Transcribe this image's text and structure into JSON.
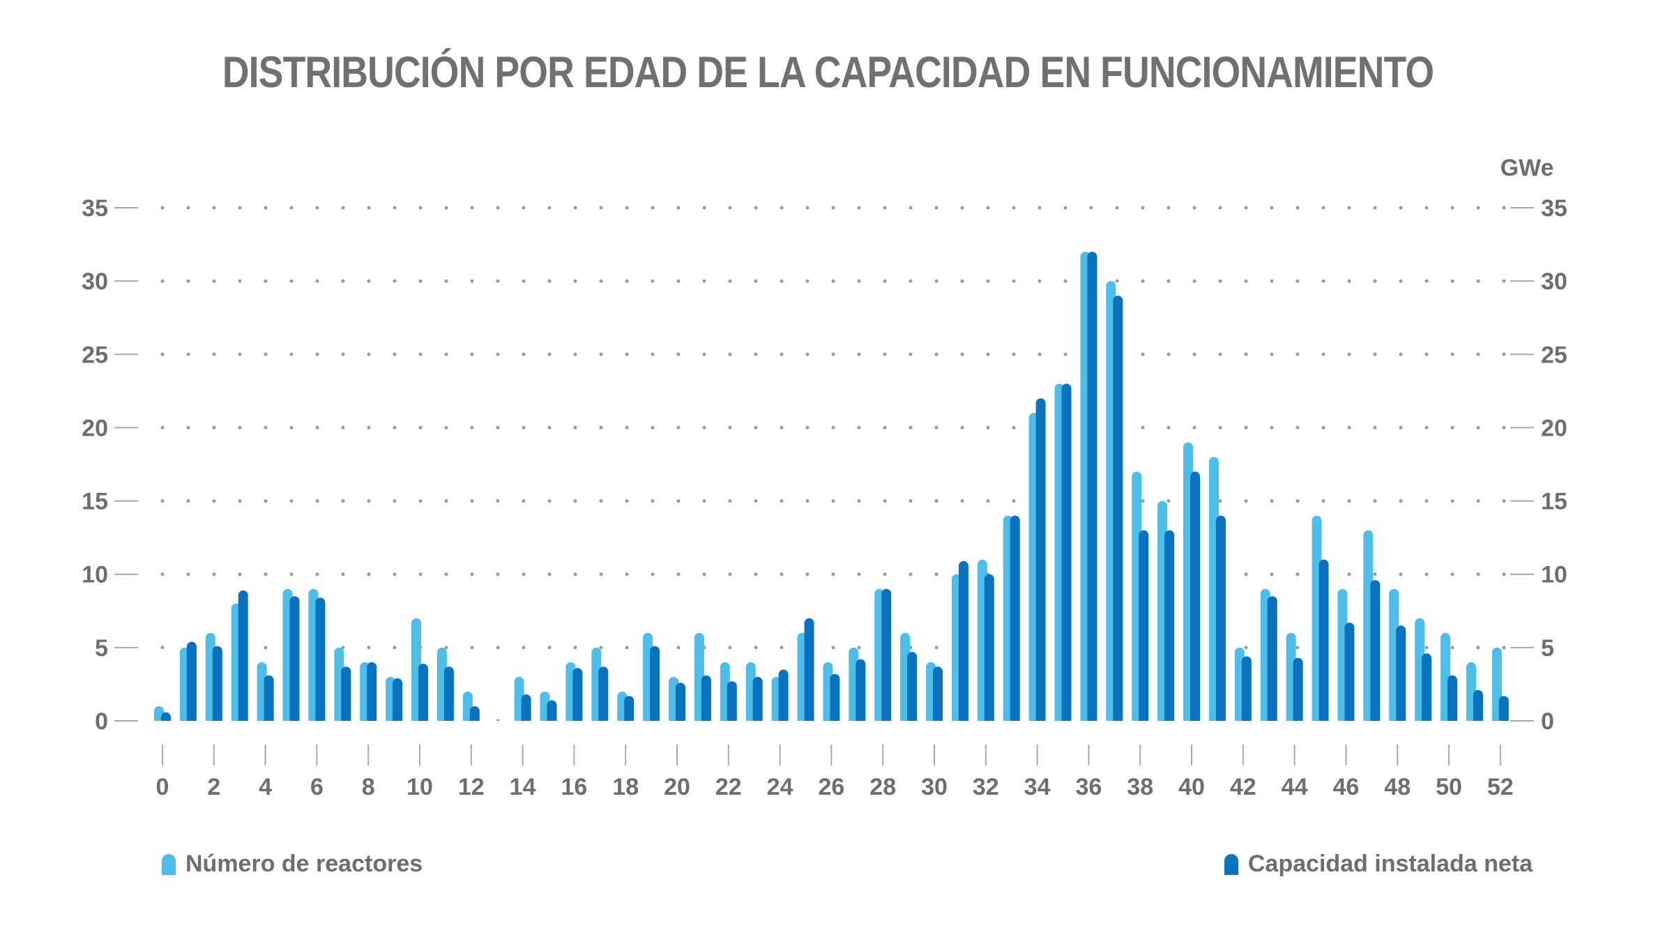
{
  "title": "DISTRIBUCIÓN POR EDAD DE LA CAPACIDAD EN FUNCIONAMIENTO",
  "colors": {
    "reactors": "#4dbde9",
    "capacity": "#0a72bf",
    "text": "#6e6e6e",
    "grid": "#a8a8a8"
  },
  "chart_data": {
    "type": "bar",
    "title": "DISTRIBUCIÓN POR EDAD DE LA CAPACIDAD EN FUNCIONAMIENTO",
    "x": [
      0,
      1,
      2,
      3,
      4,
      5,
      6,
      7,
      8,
      9,
      10,
      11,
      12,
      13,
      14,
      15,
      16,
      17,
      18,
      19,
      20,
      21,
      22,
      23,
      24,
      25,
      26,
      27,
      28,
      29,
      30,
      31,
      32,
      33,
      34,
      35,
      36,
      37,
      38,
      39,
      40,
      41,
      42,
      43,
      44,
      45,
      46,
      47,
      48,
      49,
      50,
      51,
      52
    ],
    "x_tick_labels": [
      "0",
      "2",
      "4",
      "6",
      "8",
      "10",
      "12",
      "14",
      "16",
      "18",
      "20",
      "22",
      "24",
      "26",
      "28",
      "30",
      "32",
      "34",
      "36",
      "38",
      "40",
      "42",
      "44",
      "46",
      "48",
      "50",
      "52"
    ],
    "y_tick_labels": [
      "0",
      "5",
      "10",
      "15",
      "20",
      "25",
      "30",
      "35"
    ],
    "ylim": [
      0,
      35
    ],
    "y2_unit": "GWe",
    "y2_tick_labels": [
      "0",
      "5",
      "10",
      "15",
      "20",
      "25",
      "30",
      "35"
    ],
    "y2lim": [
      0,
      35
    ],
    "grid": "dotted horizontal",
    "legend_placement": "bottom",
    "series": [
      {
        "name": "Número de reactores",
        "axis": "left",
        "values": [
          1,
          5,
          6,
          8,
          4,
          9,
          9,
          5,
          4,
          3,
          7,
          5,
          2,
          0,
          3,
          2,
          4,
          5,
          2,
          6,
          3,
          6,
          4,
          4,
          3,
          6,
          4,
          5,
          9,
          6,
          4,
          10,
          11,
          14,
          21,
          23,
          32,
          30,
          17,
          15,
          19,
          18,
          5,
          9,
          6,
          14,
          9,
          13,
          9,
          7,
          6,
          4,
          5
        ]
      },
      {
        "name": "Capacidad instalada neta",
        "axis": "right",
        "values": [
          0.5,
          5.4,
          5.1,
          8.9,
          3.1,
          8.5,
          8.4,
          3.7,
          4.0,
          2.9,
          3.9,
          3.7,
          1.0,
          0,
          1.8,
          1.4,
          3.6,
          3.7,
          1.7,
          5.1,
          2.6,
          3.1,
          2.7,
          3.0,
          3.5,
          7.0,
          3.2,
          4.2,
          9.0,
          4.7,
          3.7,
          10.9,
          10.0,
          14.0,
          22.0,
          23.0,
          32.0,
          29.0,
          13.0,
          13.0,
          17.0,
          14.0,
          4.4,
          8.5,
          4.3,
          11.0,
          6.7,
          9.6,
          6.5,
          4.6,
          3.1,
          2.1,
          1.7
        ]
      }
    ]
  },
  "legend": {
    "reactors_label": "Número de reactores",
    "capacity_label": "Capacidad instalada neta"
  }
}
